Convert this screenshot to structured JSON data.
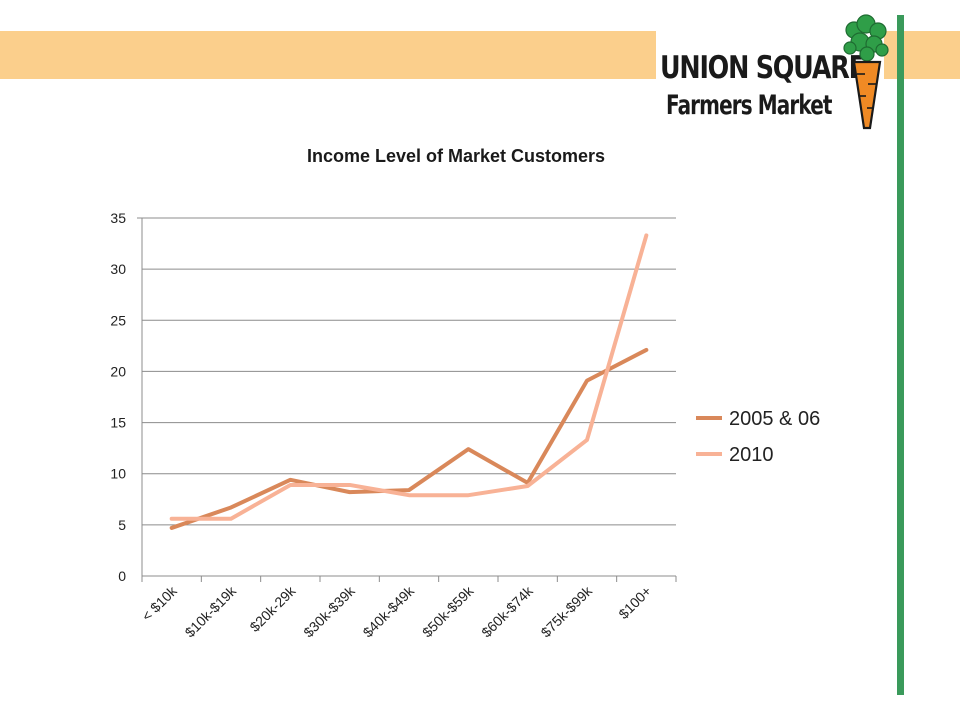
{
  "brand": {
    "line1": "UNION SQUARE",
    "line2": "Farmers Market",
    "band_color": "#fbcf8c",
    "accent_green": "#3a9a5b",
    "carrot_orange": "#f08a24",
    "leaf_green": "#2f9e48"
  },
  "chart_data": {
    "type": "line",
    "title": "Income Level of Market Customers",
    "xlabel": "",
    "ylabel": "",
    "categories": [
      "< $10k",
      "$10k-$19k",
      "$20k-29k",
      "$30k-$39k",
      "$40k-$49k",
      "$50k-$59k",
      "$60k-$74k",
      "$75k-$99k",
      "$100+"
    ],
    "ylim": [
      0,
      35
    ],
    "yticks": [
      0,
      5,
      10,
      15,
      20,
      25,
      30,
      35
    ],
    "grid": true,
    "legend_position": "right",
    "series": [
      {
        "name": "2005 & 06",
        "color": "#d9885a",
        "values": [
          4.7,
          6.7,
          9.4,
          8.2,
          8.4,
          12.4,
          9.1,
          19.1,
          22.1
        ]
      },
      {
        "name": "2010",
        "color": "#f8b296",
        "values": [
          5.6,
          5.6,
          8.9,
          8.9,
          7.9,
          7.9,
          8.8,
          13.3,
          33.3
        ]
      }
    ]
  }
}
